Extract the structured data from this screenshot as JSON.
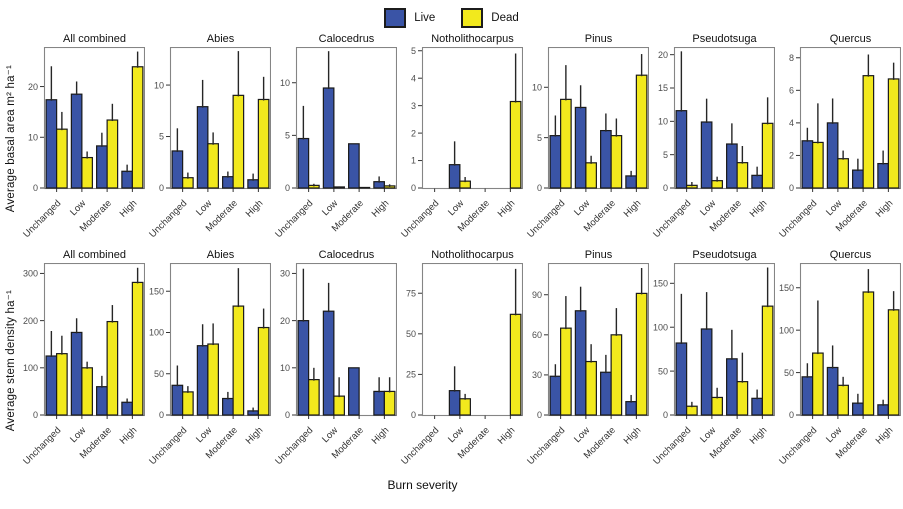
{
  "legend": {
    "items": [
      {
        "label": "Live",
        "color": "#3A54A6"
      },
      {
        "label": "Dead",
        "color": "#F2E91D"
      }
    ]
  },
  "axes": {
    "x_label": "Burn severity",
    "categories": [
      "Unchanged",
      "Low",
      "Moderate",
      "High"
    ],
    "row_ylabels": [
      "Average basal area  m² ha⁻¹",
      "Average stem density ha⁻¹"
    ]
  },
  "style": {
    "bar_outline": "#1a1a1a",
    "error_bar_color": "#262626",
    "panel_border": "#858585",
    "tick_color": "#333333",
    "tick_text_color": "#4d4d4d"
  },
  "chart_data": {
    "type": "bar",
    "categories": [
      "Unchanged",
      "Low",
      "Moderate",
      "High"
    ],
    "series_names": [
      "Live",
      "Dead"
    ],
    "error_bars": "upper-only",
    "legend_position": "top",
    "grid": false,
    "rows": [
      {
        "ylabel": "Average basal area  m² ha⁻¹",
        "panels": [
          {
            "title": "All combined",
            "ymax": 27.6,
            "yticks": [
              0,
              10,
              20
            ],
            "live": [
              17.4,
              18.5,
              8.3,
              3.3
            ],
            "live_err_hi": [
              24.0,
              21.0,
              10.9,
              4.6
            ],
            "dead": [
              11.6,
              6.0,
              13.4,
              23.9
            ],
            "dead_err_hi": [
              15.0,
              7.2,
              16.6,
              26.9
            ]
          },
          {
            "title": "Abies",
            "ymax": 13.6,
            "yticks": [
              0,
              5,
              10
            ],
            "live": [
              3.6,
              7.9,
              1.1,
              0.8
            ],
            "live_err_hi": [
              5.8,
              10.5,
              1.6,
              1.4
            ],
            "dead": [
              1.0,
              4.3,
              9.0,
              8.6
            ],
            "dead_err_hi": [
              1.5,
              5.4,
              13.3,
              10.8
            ]
          },
          {
            "title": "Calocedrus",
            "ymax": 13.3,
            "yticks": [
              0,
              5,
              10
            ],
            "live": [
              4.7,
              9.5,
              4.2,
              0.6
            ],
            "live_err_hi": [
              7.8,
              13.0,
              4.2,
              1.1
            ],
            "dead": [
              0.25,
              0.1,
              0.05,
              0.2
            ],
            "dead_err_hi": [
              0.4,
              0.15,
              0.05,
              0.35
            ]
          },
          {
            "title": "Notholithocarpus",
            "ymax": 5.1,
            "yticks": [
              0,
              1,
              2,
              3,
              4,
              5
            ],
            "live": [
              0,
              0.85,
              0,
              0
            ],
            "live_err_hi": [
              0,
              1.7,
              0,
              0
            ],
            "dead": [
              0,
              0.25,
              0,
              3.15
            ],
            "dead_err_hi": [
              0,
              0.4,
              0,
              4.9
            ]
          },
          {
            "title": "Pinus",
            "ymax": 13.9,
            "yticks": [
              0,
              5,
              10
            ],
            "live": [
              5.2,
              8.0,
              5.7,
              1.2
            ],
            "live_err_hi": [
              7.2,
              10.2,
              7.4,
              1.7
            ],
            "dead": [
              8.8,
              2.5,
              5.2,
              11.2
            ],
            "dead_err_hi": [
              12.2,
              3.2,
              6.9,
              13.3
            ]
          },
          {
            "title": "Pseudotsuga",
            "ymax": 21.0,
            "yticks": [
              0,
              5,
              10,
              15,
              20
            ],
            "live": [
              11.6,
              9.9,
              6.6,
              1.9
            ],
            "live_err_hi": [
              20.5,
              13.4,
              9.7,
              3.2
            ],
            "dead": [
              0.4,
              1.1,
              3.8,
              9.7
            ],
            "dead_err_hi": [
              0.9,
              1.7,
              6.3,
              13.6
            ]
          },
          {
            "title": "Quercus",
            "ymax": 8.6,
            "yticks": [
              0,
              2,
              4,
              6,
              8
            ],
            "live": [
              2.9,
              4.0,
              1.1,
              1.5
            ],
            "live_err_hi": [
              3.7,
              5.5,
              1.8,
              2.3
            ],
            "dead": [
              2.8,
              1.8,
              6.9,
              6.7
            ],
            "dead_err_hi": [
              5.2,
              2.3,
              8.2,
              7.7
            ]
          }
        ]
      },
      {
        "ylabel": "Average stem density ha⁻¹",
        "panels": [
          {
            "title": "All combined",
            "ymax": 320,
            "yticks": [
              0,
              100,
              200,
              300
            ],
            "live": [
              125,
              175,
              60,
              27
            ],
            "live_err_hi": [
              178,
              205,
              83,
              35
            ],
            "dead": [
              130,
              100,
              198,
              281
            ],
            "dead_err_hi": [
              168,
              113,
              233,
              312
            ]
          },
          {
            "title": "Abies",
            "ymax": 183,
            "yticks": [
              0,
              50,
              100,
              150
            ],
            "live": [
              36,
              84,
              20,
              5
            ],
            "live_err_hi": [
              60,
              110,
              28,
              9
            ],
            "dead": [
              28,
              86,
              132,
              106
            ],
            "dead_err_hi": [
              35,
              111,
              178,
              129
            ]
          },
          {
            "title": "Calocedrus",
            "ymax": 32,
            "yticks": [
              0,
              10,
              20,
              30
            ],
            "live": [
              20,
              22,
              10,
              5
            ],
            "live_err_hi": [
              31,
              28,
              10,
              8
            ],
            "dead": [
              7.5,
              4,
              0,
              5
            ],
            "dead_err_hi": [
              10,
              8,
              0,
              8
            ]
          },
          {
            "title": "Notholithocarpus",
            "ymax": 93,
            "yticks": [
              0,
              25,
              50,
              75
            ],
            "live": [
              0,
              15,
              0,
              0
            ],
            "live_err_hi": [
              0,
              30,
              0,
              0
            ],
            "dead": [
              0,
              10,
              0,
              62
            ],
            "dead_err_hi": [
              0,
              13,
              0,
              90
            ]
          },
          {
            "title": "Pinus",
            "ymax": 113,
            "yticks": [
              0,
              30,
              60,
              90
            ],
            "live": [
              29,
              78,
              32,
              10
            ],
            "live_err_hi": [
              38,
              96,
              45,
              15
            ],
            "dead": [
              65,
              40,
              60,
              91
            ],
            "dead_err_hi": [
              89,
              53,
              80,
              110
            ]
          },
          {
            "title": "Pseudotsuga",
            "ymax": 172,
            "yticks": [
              0,
              50,
              100,
              150
            ],
            "live": [
              82,
              98,
              64,
              19
            ],
            "live_err_hi": [
              138,
              140,
              97,
              29
            ],
            "dead": [
              10,
              20,
              38,
              124
            ],
            "dead_err_hi": [
              15,
              31,
              71,
              168
            ]
          },
          {
            "title": "Quercus",
            "ymax": 178,
            "yticks": [
              0,
              50,
              100,
              150
            ],
            "live": [
              45,
              56,
              14,
              12
            ],
            "live_err_hi": [
              61,
              82,
              25,
              18
            ],
            "dead": [
              73,
              35,
              145,
              124
            ],
            "dead_err_hi": [
              135,
              45,
              172,
              146
            ]
          }
        ]
      }
    ]
  }
}
